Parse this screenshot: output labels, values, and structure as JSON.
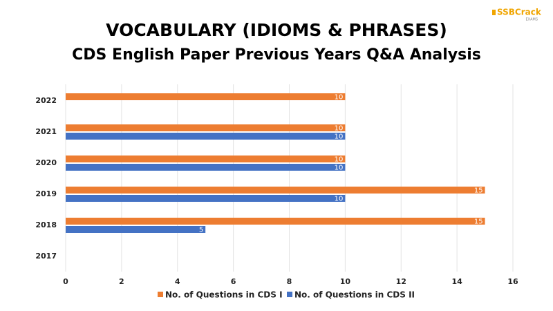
{
  "chart_data": {
    "type": "bar",
    "orientation": "horizontal",
    "title": "VOCABULARY (IDIOMS & PHRASES)",
    "subtitle": "CDS English Paper Previous Years Q&A Analysis",
    "categories": [
      "2022",
      "2021",
      "2020",
      "2019",
      "2018",
      "2017"
    ],
    "series": [
      {
        "name": "No. of Questions in CDS I",
        "color": "#ed7d31",
        "values": [
          10,
          10,
          10,
          15,
          15,
          null
        ]
      },
      {
        "name": "No. of Questions in CDS II",
        "color": "#4472c4",
        "values": [
          null,
          10,
          10,
          10,
          5,
          null
        ]
      }
    ],
    "xlim": [
      0,
      16
    ],
    "xticks": [
      0,
      2,
      4,
      6,
      8,
      10,
      12,
      14,
      16
    ],
    "grid": true,
    "legend": "bottom",
    "data_labels": true
  },
  "logo": {
    "text": "SSBCrack",
    "sub": "EXAMS"
  }
}
